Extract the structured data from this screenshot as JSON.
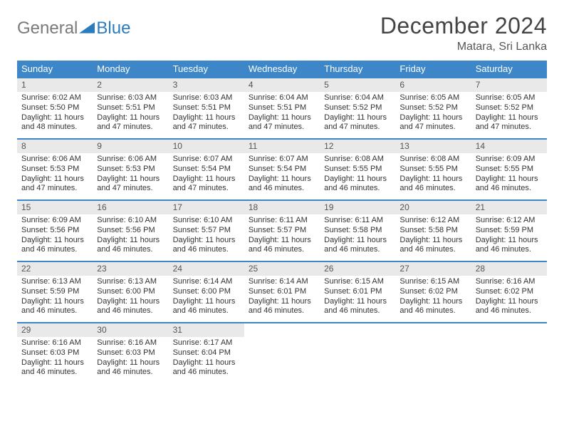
{
  "logo": {
    "text1": "General",
    "text2": "Blue"
  },
  "title": "December 2024",
  "location": "Matara, Sri Lanka",
  "colors": {
    "header_bg": "#3d87c9",
    "header_text": "#ffffff",
    "daynum_bg": "#e9e9e9",
    "row_border": "#3d87c9",
    "logo_gray": "#7a7a7a",
    "logo_blue": "#2b7bbf"
  },
  "weekdays": [
    "Sunday",
    "Monday",
    "Tuesday",
    "Wednesday",
    "Thursday",
    "Friday",
    "Saturday"
  ],
  "weeks": [
    [
      {
        "n": "1",
        "sr": "Sunrise: 6:02 AM",
        "ss": "Sunset: 5:50 PM",
        "d1": "Daylight: 11 hours",
        "d2": "and 48 minutes."
      },
      {
        "n": "2",
        "sr": "Sunrise: 6:03 AM",
        "ss": "Sunset: 5:51 PM",
        "d1": "Daylight: 11 hours",
        "d2": "and 47 minutes."
      },
      {
        "n": "3",
        "sr": "Sunrise: 6:03 AM",
        "ss": "Sunset: 5:51 PM",
        "d1": "Daylight: 11 hours",
        "d2": "and 47 minutes."
      },
      {
        "n": "4",
        "sr": "Sunrise: 6:04 AM",
        "ss": "Sunset: 5:51 PM",
        "d1": "Daylight: 11 hours",
        "d2": "and 47 minutes."
      },
      {
        "n": "5",
        "sr": "Sunrise: 6:04 AM",
        "ss": "Sunset: 5:52 PM",
        "d1": "Daylight: 11 hours",
        "d2": "and 47 minutes."
      },
      {
        "n": "6",
        "sr": "Sunrise: 6:05 AM",
        "ss": "Sunset: 5:52 PM",
        "d1": "Daylight: 11 hours",
        "d2": "and 47 minutes."
      },
      {
        "n": "7",
        "sr": "Sunrise: 6:05 AM",
        "ss": "Sunset: 5:52 PM",
        "d1": "Daylight: 11 hours",
        "d2": "and 47 minutes."
      }
    ],
    [
      {
        "n": "8",
        "sr": "Sunrise: 6:06 AM",
        "ss": "Sunset: 5:53 PM",
        "d1": "Daylight: 11 hours",
        "d2": "and 47 minutes."
      },
      {
        "n": "9",
        "sr": "Sunrise: 6:06 AM",
        "ss": "Sunset: 5:53 PM",
        "d1": "Daylight: 11 hours",
        "d2": "and 47 minutes."
      },
      {
        "n": "10",
        "sr": "Sunrise: 6:07 AM",
        "ss": "Sunset: 5:54 PM",
        "d1": "Daylight: 11 hours",
        "d2": "and 47 minutes."
      },
      {
        "n": "11",
        "sr": "Sunrise: 6:07 AM",
        "ss": "Sunset: 5:54 PM",
        "d1": "Daylight: 11 hours",
        "d2": "and 46 minutes."
      },
      {
        "n": "12",
        "sr": "Sunrise: 6:08 AM",
        "ss": "Sunset: 5:55 PM",
        "d1": "Daylight: 11 hours",
        "d2": "and 46 minutes."
      },
      {
        "n": "13",
        "sr": "Sunrise: 6:08 AM",
        "ss": "Sunset: 5:55 PM",
        "d1": "Daylight: 11 hours",
        "d2": "and 46 minutes."
      },
      {
        "n": "14",
        "sr": "Sunrise: 6:09 AM",
        "ss": "Sunset: 5:55 PM",
        "d1": "Daylight: 11 hours",
        "d2": "and 46 minutes."
      }
    ],
    [
      {
        "n": "15",
        "sr": "Sunrise: 6:09 AM",
        "ss": "Sunset: 5:56 PM",
        "d1": "Daylight: 11 hours",
        "d2": "and 46 minutes."
      },
      {
        "n": "16",
        "sr": "Sunrise: 6:10 AM",
        "ss": "Sunset: 5:56 PM",
        "d1": "Daylight: 11 hours",
        "d2": "and 46 minutes."
      },
      {
        "n": "17",
        "sr": "Sunrise: 6:10 AM",
        "ss": "Sunset: 5:57 PM",
        "d1": "Daylight: 11 hours",
        "d2": "and 46 minutes."
      },
      {
        "n": "18",
        "sr": "Sunrise: 6:11 AM",
        "ss": "Sunset: 5:57 PM",
        "d1": "Daylight: 11 hours",
        "d2": "and 46 minutes."
      },
      {
        "n": "19",
        "sr": "Sunrise: 6:11 AM",
        "ss": "Sunset: 5:58 PM",
        "d1": "Daylight: 11 hours",
        "d2": "and 46 minutes."
      },
      {
        "n": "20",
        "sr": "Sunrise: 6:12 AM",
        "ss": "Sunset: 5:58 PM",
        "d1": "Daylight: 11 hours",
        "d2": "and 46 minutes."
      },
      {
        "n": "21",
        "sr": "Sunrise: 6:12 AM",
        "ss": "Sunset: 5:59 PM",
        "d1": "Daylight: 11 hours",
        "d2": "and 46 minutes."
      }
    ],
    [
      {
        "n": "22",
        "sr": "Sunrise: 6:13 AM",
        "ss": "Sunset: 5:59 PM",
        "d1": "Daylight: 11 hours",
        "d2": "and 46 minutes."
      },
      {
        "n": "23",
        "sr": "Sunrise: 6:13 AM",
        "ss": "Sunset: 6:00 PM",
        "d1": "Daylight: 11 hours",
        "d2": "and 46 minutes."
      },
      {
        "n": "24",
        "sr": "Sunrise: 6:14 AM",
        "ss": "Sunset: 6:00 PM",
        "d1": "Daylight: 11 hours",
        "d2": "and 46 minutes."
      },
      {
        "n": "25",
        "sr": "Sunrise: 6:14 AM",
        "ss": "Sunset: 6:01 PM",
        "d1": "Daylight: 11 hours",
        "d2": "and 46 minutes."
      },
      {
        "n": "26",
        "sr": "Sunrise: 6:15 AM",
        "ss": "Sunset: 6:01 PM",
        "d1": "Daylight: 11 hours",
        "d2": "and 46 minutes."
      },
      {
        "n": "27",
        "sr": "Sunrise: 6:15 AM",
        "ss": "Sunset: 6:02 PM",
        "d1": "Daylight: 11 hours",
        "d2": "and 46 minutes."
      },
      {
        "n": "28",
        "sr": "Sunrise: 6:16 AM",
        "ss": "Sunset: 6:02 PM",
        "d1": "Daylight: 11 hours",
        "d2": "and 46 minutes."
      }
    ],
    [
      {
        "n": "29",
        "sr": "Sunrise: 6:16 AM",
        "ss": "Sunset: 6:03 PM",
        "d1": "Daylight: 11 hours",
        "d2": "and 46 minutes."
      },
      {
        "n": "30",
        "sr": "Sunrise: 6:16 AM",
        "ss": "Sunset: 6:03 PM",
        "d1": "Daylight: 11 hours",
        "d2": "and 46 minutes."
      },
      {
        "n": "31",
        "sr": "Sunrise: 6:17 AM",
        "ss": "Sunset: 6:04 PM",
        "d1": "Daylight: 11 hours",
        "d2": "and 46 minutes."
      },
      null,
      null,
      null,
      null
    ]
  ]
}
